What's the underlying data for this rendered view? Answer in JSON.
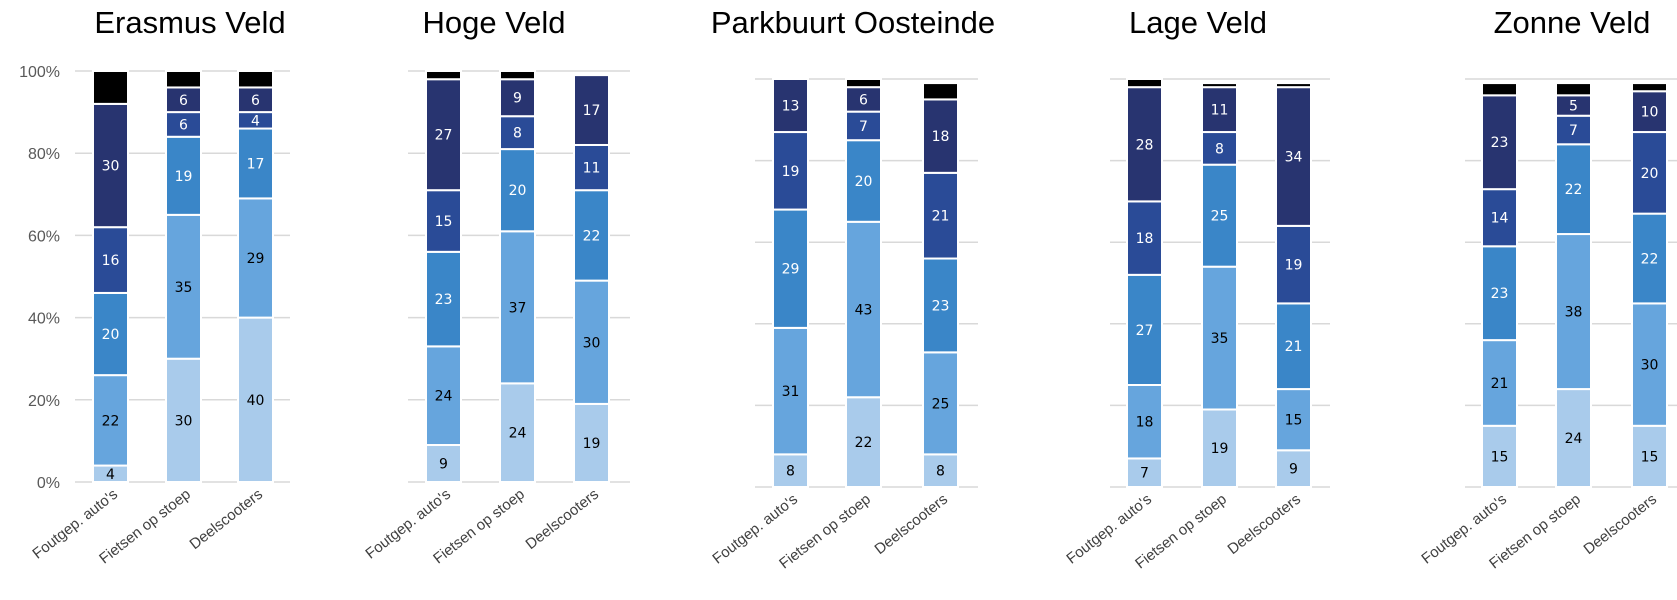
{
  "chart_data": [
    {
      "type": "bar",
      "stacked": true,
      "title": "Erasmus Veld",
      "categories": [
        "Foutgep. auto's",
        "Fietsen op stoep",
        "Deelscooters"
      ],
      "segments": [
        {
          "values": [
            4,
            30,
            40
          ],
          "labels": [
            "4",
            "30",
            "40"
          ],
          "color": "#a9cbeb",
          "label_color": "#000000"
        },
        {
          "values": [
            22,
            35,
            29
          ],
          "labels": [
            "22",
            "35",
            "29"
          ],
          "color": "#66a5dd",
          "label_color": "#000000"
        },
        {
          "values": [
            20,
            19,
            17
          ],
          "labels": [
            "20",
            "19",
            "17"
          ],
          "color": "#3a86c8",
          "label_color": "#ffffff"
        },
        {
          "values": [
            16,
            6,
            4
          ],
          "labels": [
            "16",
            "6",
            "4"
          ],
          "color": "#2a4b97",
          "label_color": "#ffffff"
        },
        {
          "values": [
            30,
            6,
            6
          ],
          "labels": [
            "30",
            "6",
            "6"
          ],
          "color": "#283470",
          "label_color": "#ffffff"
        },
        {
          "values": [
            8,
            4,
            4
          ],
          "labels": [
            "",
            "",
            ""
          ],
          "color": "#000000",
          "label_color": "#ffffff"
        }
      ],
      "yticks": [
        "0%",
        "20%",
        "40%",
        "60%",
        "80%",
        "100%"
      ],
      "ylim": [
        0,
        100
      ]
    },
    {
      "type": "bar",
      "stacked": true,
      "title": "Hoge Veld",
      "categories": [
        "Foutgep. auto's",
        "Fietsen op stoep",
        "Deelscooters"
      ],
      "segments": [
        {
          "values": [
            9,
            24,
            19
          ],
          "labels": [
            "9",
            "24",
            "19"
          ],
          "color": "#a9cbeb",
          "label_color": "#000000"
        },
        {
          "values": [
            24,
            37,
            30
          ],
          "labels": [
            "24",
            "37",
            "30"
          ],
          "color": "#66a5dd",
          "label_color": "#000000"
        },
        {
          "values": [
            23,
            20,
            22
          ],
          "labels": [
            "23",
            "20",
            "22"
          ],
          "color": "#3a86c8",
          "label_color": "#ffffff"
        },
        {
          "values": [
            15,
            8,
            11
          ],
          "labels": [
            "15",
            "8",
            "11"
          ],
          "color": "#2a4b97",
          "label_color": "#ffffff"
        },
        {
          "values": [
            27,
            9,
            17
          ],
          "labels": [
            "27",
            "9",
            "17"
          ],
          "color": "#283470",
          "label_color": "#ffffff"
        },
        {
          "values": [
            2,
            2,
            0
          ],
          "labels": [
            "",
            "",
            ""
          ],
          "color": "#000000",
          "label_color": "#ffffff"
        }
      ]
    },
    {
      "type": "bar",
      "stacked": true,
      "title": "Parkbuurt Oosteinde",
      "categories": [
        "Foutgep. auto's",
        "Fietsen op stoep",
        "Deelscooters"
      ],
      "segments": [
        {
          "values": [
            8,
            22,
            8
          ],
          "labels": [
            "8",
            "22",
            "8"
          ],
          "color": "#a9cbeb",
          "label_color": "#000000"
        },
        {
          "values": [
            31,
            43,
            25
          ],
          "labels": [
            "31",
            "43",
            "25"
          ],
          "color": "#66a5dd",
          "label_color": "#000000"
        },
        {
          "values": [
            29,
            20,
            23
          ],
          "labels": [
            "29",
            "20",
            "23"
          ],
          "color": "#3a86c8",
          "label_color": "#ffffff"
        },
        {
          "values": [
            19,
            7,
            21
          ],
          "labels": [
            "19",
            "7",
            "21"
          ],
          "color": "#2a4b97",
          "label_color": "#ffffff"
        },
        {
          "values": [
            13,
            6,
            18
          ],
          "labels": [
            "13",
            "6",
            "18"
          ],
          "color": "#283470",
          "label_color": "#ffffff"
        },
        {
          "values": [
            0,
            2,
            4
          ],
          "labels": [
            "",
            "",
            ""
          ],
          "color": "#000000",
          "label_color": "#ffffff"
        }
      ]
    },
    {
      "type": "bar",
      "stacked": true,
      "title": "Lage Veld",
      "categories": [
        "Foutgep. auto's",
        "Fietsen op stoep",
        "Deelscooters"
      ],
      "segments": [
        {
          "values": [
            7,
            19,
            9
          ],
          "labels": [
            "7",
            "19",
            "9"
          ],
          "color": "#a9cbeb",
          "label_color": "#000000"
        },
        {
          "values": [
            18,
            35,
            15
          ],
          "labels": [
            "18",
            "35",
            "15"
          ],
          "color": "#66a5dd",
          "label_color": "#000000"
        },
        {
          "values": [
            27,
            25,
            21
          ],
          "labels": [
            "27",
            "25",
            "21"
          ],
          "color": "#3a86c8",
          "label_color": "#ffffff"
        },
        {
          "values": [
            18,
            8,
            19
          ],
          "labels": [
            "18",
            "8",
            "19"
          ],
          "color": "#2a4b97",
          "label_color": "#ffffff"
        },
        {
          "values": [
            28,
            11,
            34
          ],
          "labels": [
            "28",
            "11",
            "34"
          ],
          "color": "#283470",
          "label_color": "#ffffff"
        },
        {
          "values": [
            2,
            1,
            1
          ],
          "labels": [
            "",
            "",
            ""
          ],
          "color": "#000000",
          "label_color": "#ffffff"
        }
      ]
    },
    {
      "type": "bar",
      "stacked": true,
      "title": "Zonne Veld",
      "categories": [
        "Foutgep. auto's",
        "Fietsen op stoep",
        "Deelscooters"
      ],
      "segments": [
        {
          "values": [
            15,
            24,
            15
          ],
          "labels": [
            "15",
            "24",
            "15"
          ],
          "color": "#a9cbeb",
          "label_color": "#000000"
        },
        {
          "values": [
            21,
            38,
            30
          ],
          "labels": [
            "21",
            "38",
            "30"
          ],
          "color": "#66a5dd",
          "label_color": "#000000"
        },
        {
          "values": [
            23,
            22,
            22
          ],
          "labels": [
            "23",
            "22",
            "22"
          ],
          "color": "#3a86c8",
          "label_color": "#ffffff"
        },
        {
          "values": [
            14,
            7,
            20
          ],
          "labels": [
            "14",
            "7",
            "20"
          ],
          "color": "#2a4b97",
          "label_color": "#ffffff"
        },
        {
          "values": [
            23,
            5,
            10
          ],
          "labels": [
            "23",
            "5",
            "10"
          ],
          "color": "#283470",
          "label_color": "#ffffff"
        },
        {
          "values": [
            3,
            3,
            2
          ],
          "labels": [
            "",
            "",
            ""
          ],
          "color": "#000000",
          "label_color": "#ffffff"
        }
      ]
    }
  ]
}
